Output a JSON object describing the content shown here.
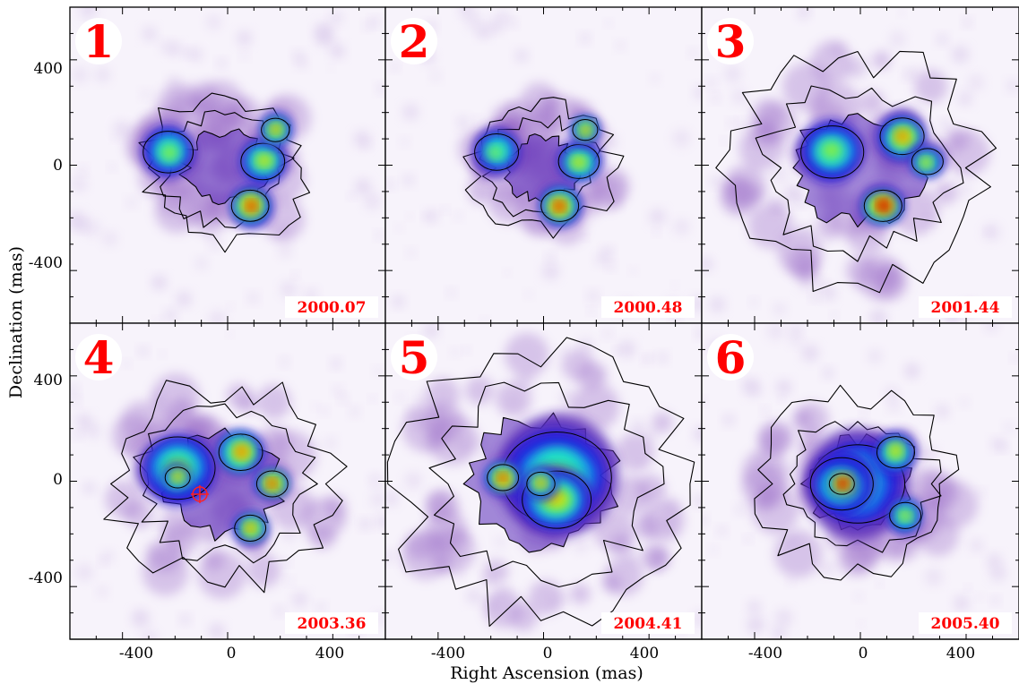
{
  "figure": {
    "xlabel": "Right Ascension (mas)",
    "ylabel": "Declination (mas)",
    "x_ticks": [
      "-400",
      "0",
      "400"
    ],
    "y_ticks": [
      "400",
      "0",
      "-400"
    ],
    "x_tick_values": [
      -400,
      0,
      400
    ],
    "y_tick_values": [
      400,
      0,
      -400
    ]
  },
  "chart_data": {
    "type": "heatmap",
    "description_axes": {
      "xlim": [
        -650,
        650
      ],
      "ylim": [
        -650,
        650
      ],
      "units": "mas",
      "x_reversed": false
    },
    "xlabel": "Right Ascension (mas)",
    "ylabel": "Declination (mas)",
    "colormap": [
      "#ffffff",
      "#d8c8ea",
      "#9a6cc8",
      "#5b2dba",
      "#1a1ae0",
      "#14a0f0",
      "#20f0c0",
      "#a0f020",
      "#f0d000",
      "#f06000",
      "#c00000"
    ],
    "panels": [
      {
        "number": "1",
        "epoch": "2000.07",
        "contour_color": "#000000"
      },
      {
        "number": "2",
        "epoch": "2000.48",
        "contour_color": "#000000"
      },
      {
        "number": "3",
        "epoch": "2001.44",
        "contour_color": "#000000"
      },
      {
        "number": "4",
        "epoch": "2003.36",
        "contour_color": "#000000"
      },
      {
        "number": "5",
        "epoch": "2004.41",
        "contour_color": "#000000"
      },
      {
        "number": "6",
        "epoch": "2005.40",
        "contour_color": "#000000"
      }
    ]
  }
}
